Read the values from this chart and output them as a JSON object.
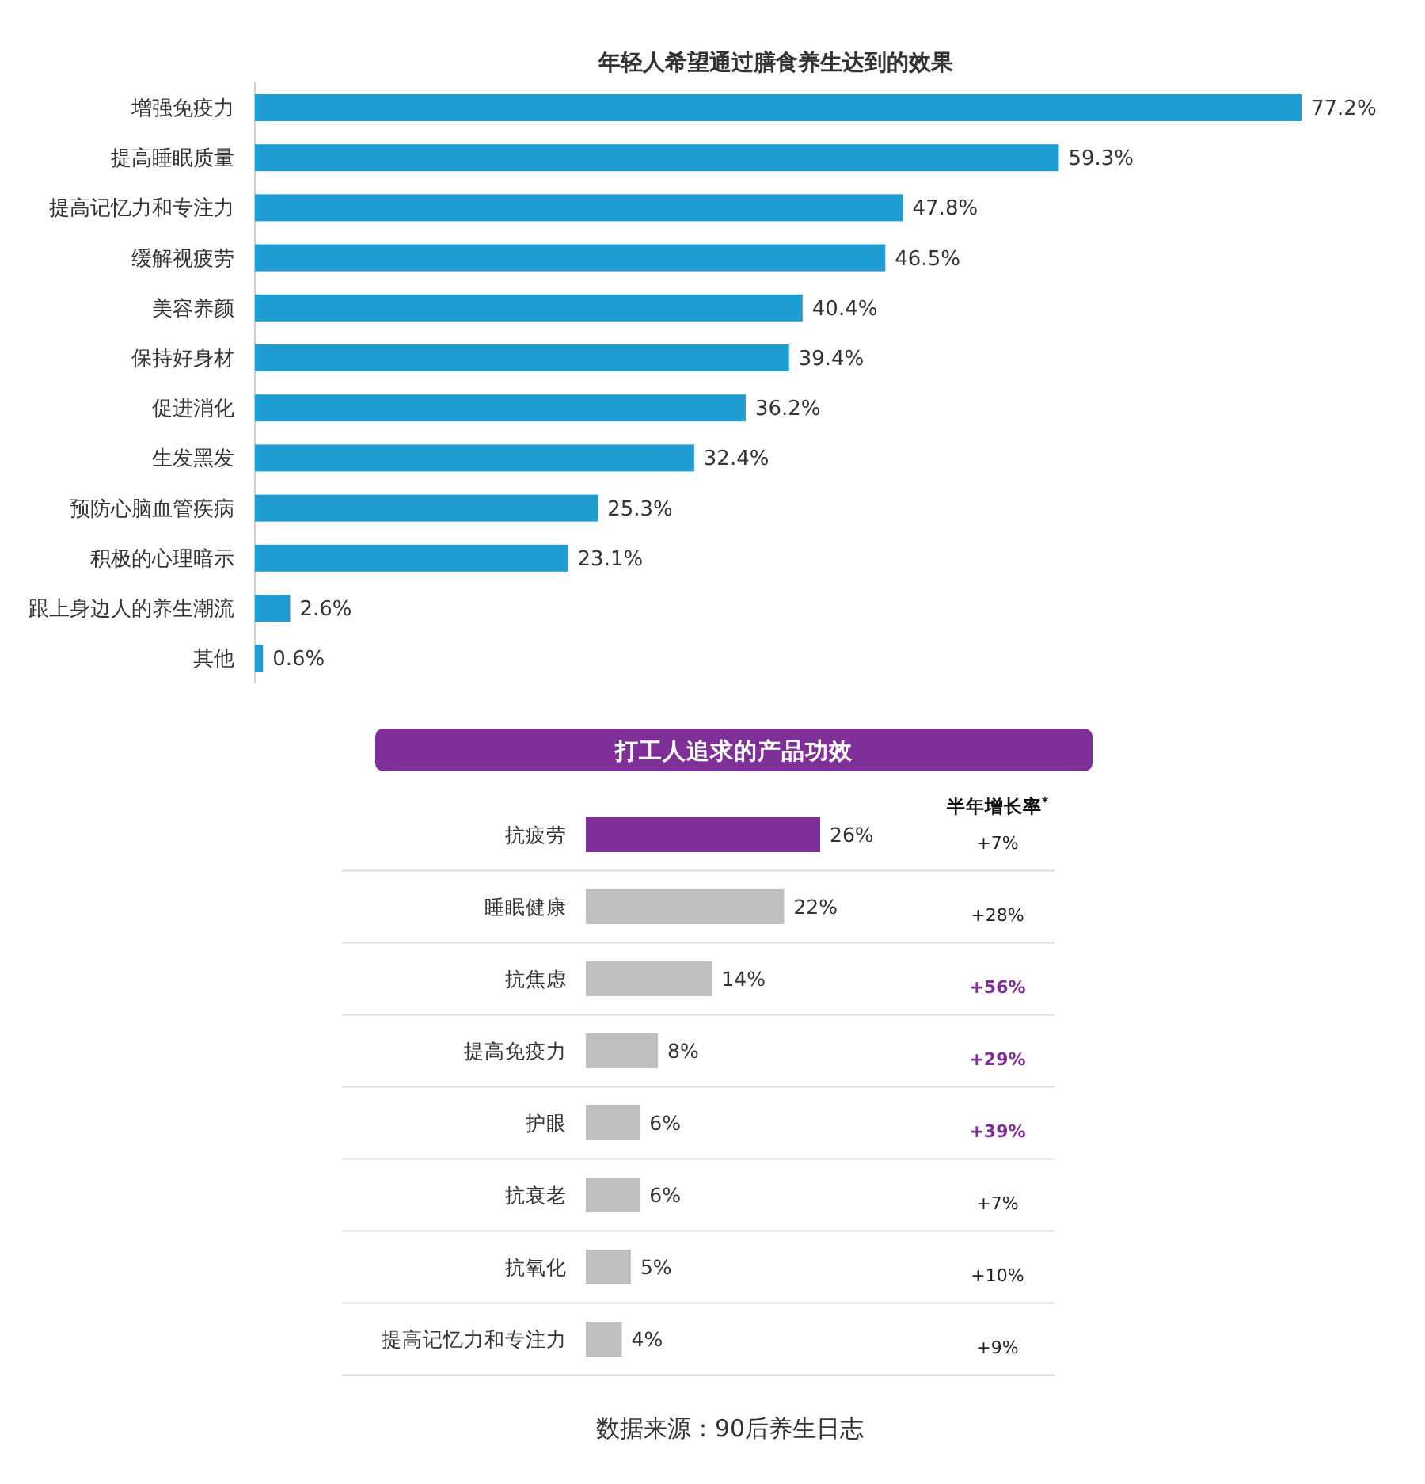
{
  "chart_data": [
    {
      "type": "bar",
      "orientation": "horizontal",
      "title": "年轻人希望通过膳食养生达到的效果",
      "categories": [
        "增强免疫力",
        "提高睡眠质量",
        "提高记忆力和专注力",
        "缓解视疲劳",
        "美容养颜",
        "保持好身材",
        "促进消化",
        "生发黑发",
        "预防心脑血管疾病",
        "积极的心理暗示",
        "跟上身边人的养生潮流",
        "其他"
      ],
      "values": [
        77.2,
        59.3,
        47.8,
        46.5,
        40.4,
        39.4,
        36.2,
        32.4,
        25.3,
        23.1,
        2.6,
        0.6
      ],
      "value_labels": [
        "77.2%",
        "59.3%",
        "47.8%",
        "46.5%",
        "40.4%",
        "39.4%",
        "36.2%",
        "32.4%",
        "25.3%",
        "23.1%",
        "2.6%",
        "0.6%"
      ],
      "color": "#1f9dd3"
    },
    {
      "type": "bar",
      "orientation": "horizontal",
      "title": "打工人追求的产品功效",
      "categories": [
        "抗疲劳",
        "睡眠健康",
        "抗焦虑",
        "提高免疫力",
        "护眼",
        "抗衰老",
        "抗氧化",
        "提高记忆力和专注力"
      ],
      "values": [
        26,
        22,
        14,
        8,
        6,
        6,
        5,
        4
      ],
      "value_labels": [
        "26%",
        "22%",
        "14%",
        "8%",
        "6%",
        "6%",
        "5%",
        "4%"
      ],
      "colors": [
        "#7f2f98",
        "#bfbfbf",
        "#bfbfbf",
        "#bfbfbf",
        "#bfbfbf",
        "#bfbfbf",
        "#bfbfbf",
        "#bfbfbf"
      ],
      "grid": "y",
      "annotations": [
        "半年增长率$^{*}$",
        "+7%",
        "+28%",
        "**+56%**",
        "**+29%**",
        "**+39%**",
        "+7%",
        "+10%",
        "+9%",
        "数据来源：90后养生日志"
      ]
    }
  ]
}
